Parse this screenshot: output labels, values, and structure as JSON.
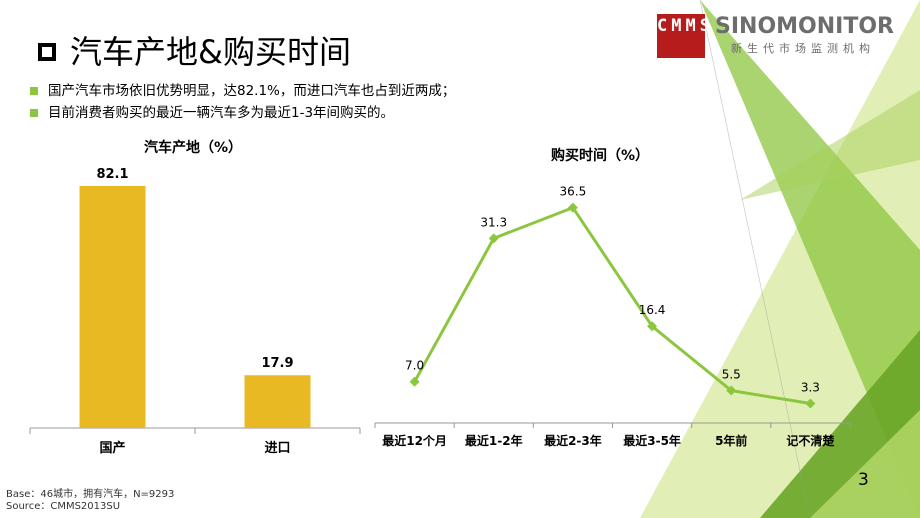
{
  "header": {
    "title": "汽车产地&购买时间",
    "bullets": [
      "国产汽车市场依旧优势明显，达82.1%，而进口汽车也占到近两成；",
      "目前消费者购买的最近一辆汽车多为最近1-3年间购买的。"
    ]
  },
  "logo": {
    "mark": "CMMS",
    "name": "SINOMONITOR",
    "subtitle": "新生代市场监测机构"
  },
  "footer": {
    "base": "Base：46城市，拥有汽车，N=9293",
    "source": "Source：CMMS2013SU",
    "page_number": "3"
  },
  "colors": {
    "bar": "#e8b923",
    "line": "#8cc63f",
    "accent": "#8cc63f",
    "logo_red": "#b71c1c"
  },
  "chart_data": [
    {
      "type": "bar",
      "title": "汽车产地（%）",
      "categories": [
        "国产",
        "进口"
      ],
      "values": [
        82.1,
        17.9
      ],
      "data_labels": [
        "82.1",
        "17.9"
      ],
      "ylim": [
        0,
        100
      ],
      "grid": false,
      "legend": "none"
    },
    {
      "type": "line",
      "title": "购买时间（%）",
      "categories": [
        "最近12个月",
        "最近1-2年",
        "最近2-3年",
        "最近3-5年",
        "5年前",
        "记不清楚"
      ],
      "values": [
        7.0,
        31.3,
        36.5,
        16.4,
        5.5,
        3.3
      ],
      "data_labels": [
        "7.0",
        "31.3",
        "36.5",
        "16.4",
        "5.5",
        "3.3"
      ],
      "ylim": [
        0,
        45
      ],
      "grid": false,
      "legend": "none"
    }
  ]
}
